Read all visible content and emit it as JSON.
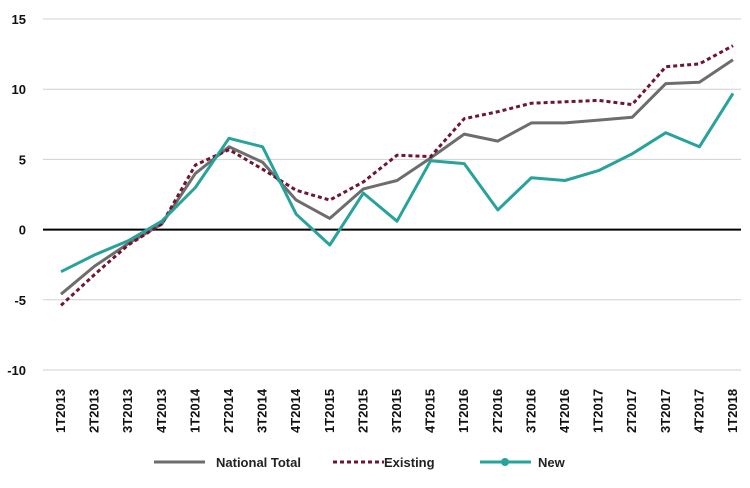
{
  "chart_data": {
    "type": "line",
    "categories": [
      "1T2013",
      "2T2013",
      "3T2013",
      "4T2013",
      "1T2014",
      "2T2014",
      "3T2014",
      "4T2014",
      "1T2015",
      "2T2015",
      "3T2015",
      "4T2015",
      "1T2016",
      "2T2016",
      "3T2016",
      "4T2016",
      "1T2017",
      "2T2017",
      "3T2017",
      "4T2017",
      "1T2018"
    ],
    "series": [
      {
        "name": "National Total",
        "color": "#6d6d6d",
        "style": "solid",
        "values": [
          -4.6,
          -2.6,
          -1.0,
          0.4,
          4.0,
          5.9,
          4.8,
          2.1,
          0.8,
          2.9,
          3.5,
          5.1,
          6.8,
          6.3,
          7.6,
          7.6,
          7.8,
          8.0,
          10.4,
          10.5,
          12.1
        ]
      },
      {
        "name": "Existing",
        "color": "#6e1630",
        "style": "dotted",
        "values": [
          -5.4,
          -3.2,
          -1.1,
          0.4,
          4.6,
          5.7,
          4.3,
          2.8,
          2.1,
          3.4,
          5.3,
          5.2,
          7.9,
          8.4,
          9.0,
          9.1,
          9.2,
          8.9,
          11.6,
          11.8,
          13.1
        ]
      },
      {
        "name": "New",
        "color": "#27a39b",
        "style": "solid-marker",
        "values": [
          -3.0,
          -1.8,
          -0.8,
          0.6,
          3.0,
          6.5,
          5.9,
          1.1,
          -1.1,
          2.6,
          0.6,
          4.9,
          4.7,
          1.4,
          3.7,
          3.5,
          4.2,
          5.4,
          6.9,
          5.9,
          9.7
        ]
      }
    ],
    "yticks": [
      "15",
      "10",
      "5",
      "0",
      "-5",
      "-10"
    ],
    "ylim": [
      -10,
      15
    ],
    "grid": true,
    "legend_position": "bottom",
    "title": "",
    "xlabel": "",
    "ylabel": ""
  }
}
